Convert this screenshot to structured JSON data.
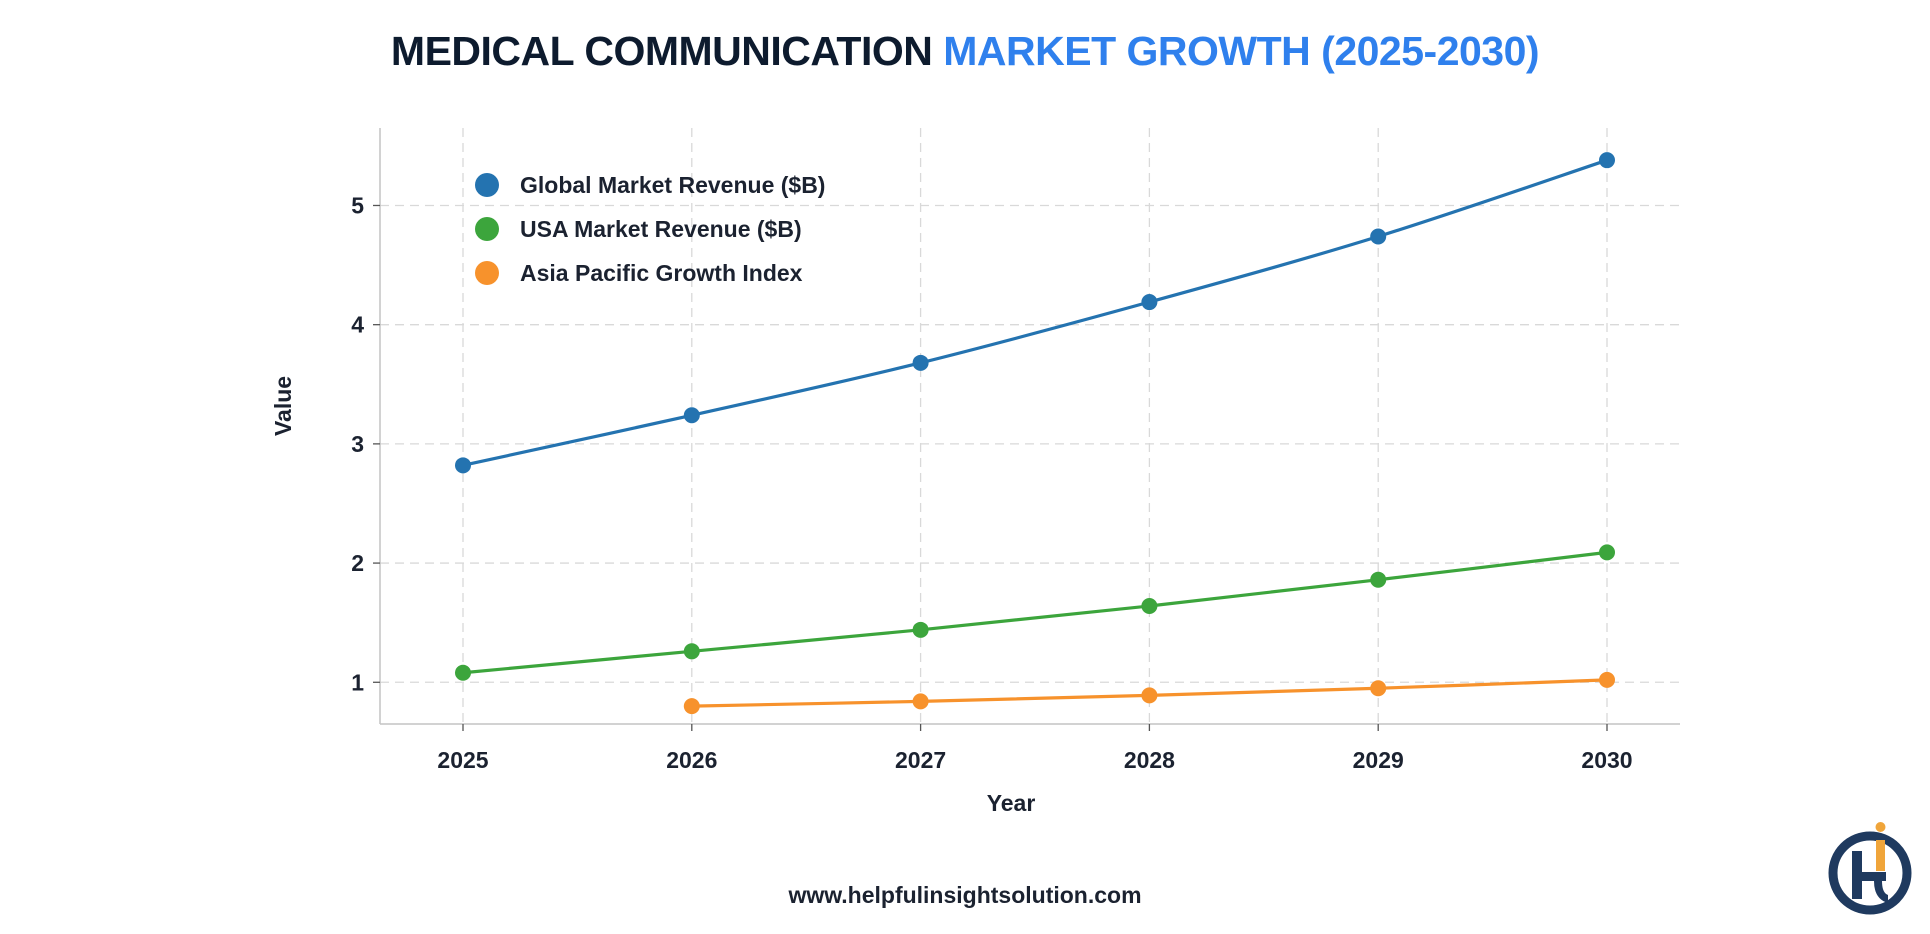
{
  "title": {
    "part1": "MEDICAL COMMUNICATION",
    "part2": "MARKET GROWTH (2025-2030)"
  },
  "footer": "www.helpfulinsightsolution.com",
  "logo": {
    "icon": "helpful-insight-logo-icon",
    "letters": "Hi"
  },
  "colors": {
    "title_dark": "#0d1b2e",
    "title_accent": "#2f80ed",
    "logo_navy": "#1f3a5f",
    "logo_orange": "#f0a53a"
  },
  "chart_data": {
    "type": "line",
    "xlabel": "Year",
    "ylabel": "Value",
    "x": [
      2025,
      2026,
      2027,
      2028,
      2029,
      2030
    ],
    "ylim": [
      0.65,
      5.65
    ],
    "yticks": [
      1,
      2,
      3,
      4,
      5
    ],
    "grid": true,
    "grid_style": "dashed",
    "legend_position": "top-left",
    "series": [
      {
        "name": "Global Market Revenue ($B)",
        "color": "#2473b0",
        "values": [
          2.82,
          3.24,
          3.68,
          4.19,
          4.74,
          5.38
        ]
      },
      {
        "name": "USA Market Revenue ($B)",
        "color": "#3ca53c",
        "values": [
          1.08,
          1.26,
          1.44,
          1.64,
          1.86,
          2.09
        ]
      },
      {
        "name": "Asia Pacific Growth Index",
        "color": "#f7922c",
        "values": [
          null,
          0.8,
          0.84,
          0.89,
          0.95,
          1.02
        ]
      }
    ]
  }
}
